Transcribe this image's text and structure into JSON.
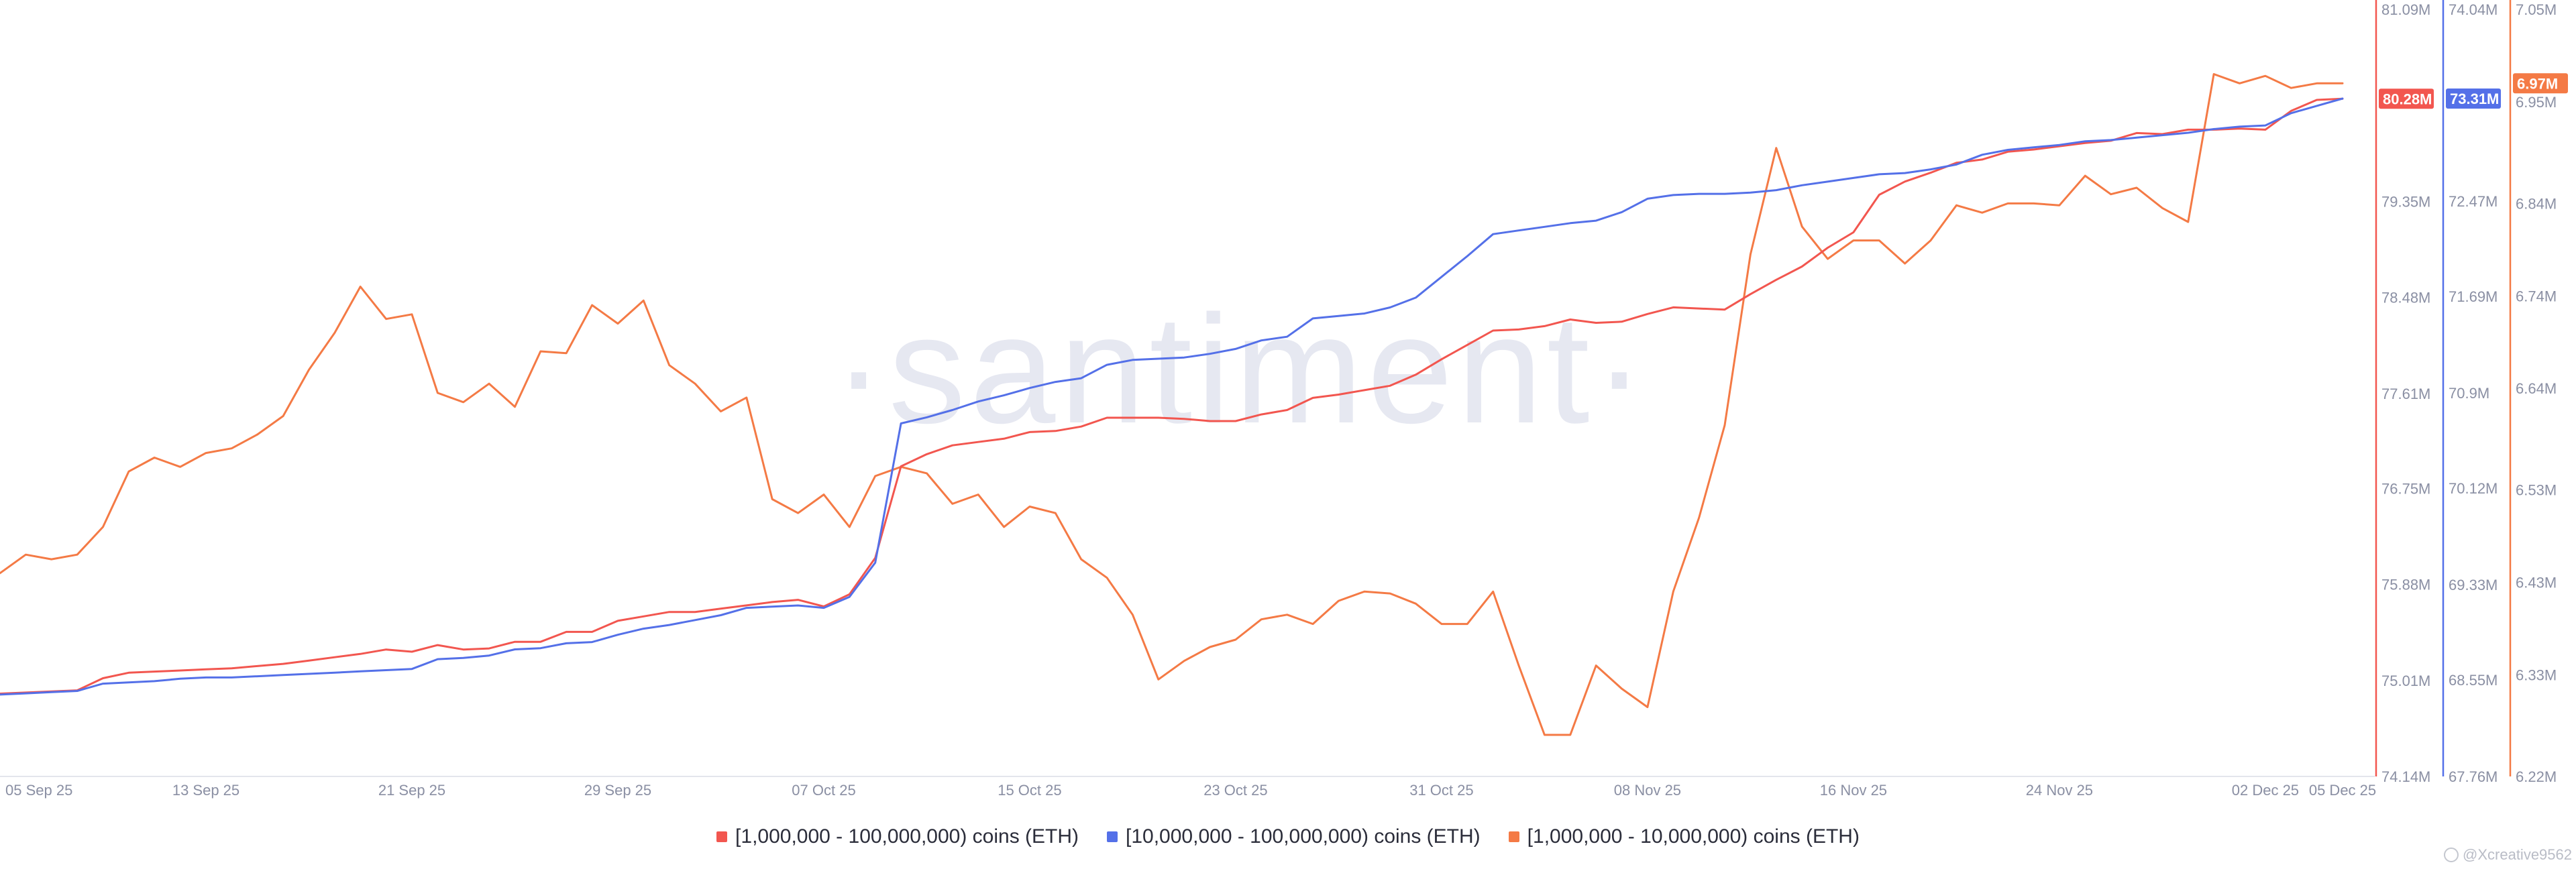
{
  "watermark": "·santiment·",
  "attribution": "@Xcreative9562",
  "chart_data": {
    "type": "line",
    "x_labels": [
      "05 Sep 25",
      "13 Sep 25",
      "21 Sep 25",
      "29 Sep 25",
      "07 Oct 25",
      "15 Oct 25",
      "23 Oct 25",
      "31 Oct 25",
      "08 Nov 25",
      "16 Nov 25",
      "24 Nov 25",
      "02 Dec 25",
      "05 Dec 25"
    ],
    "x_label_days": [
      0,
      8,
      16,
      24,
      32,
      40,
      48,
      56,
      64,
      72,
      80,
      88,
      91
    ],
    "axes": {
      "red": {
        "ticks": [
          "81.09M",
          "79.35M",
          "78.48M",
          "77.61M",
          "76.75M",
          "75.88M",
          "75.01M",
          "74.14M"
        ],
        "min": 74.14,
        "max": 81.09,
        "current_label": "80.28M",
        "color": "#f2564f"
      },
      "blue": {
        "ticks": [
          "74.04M",
          "72.47M",
          "71.69M",
          "70.9M",
          "70.12M",
          "69.33M",
          "68.55M",
          "67.76M"
        ],
        "min": 67.76,
        "max": 74.04,
        "current_label": "73.31M",
        "color": "#5470e8"
      },
      "orange": {
        "ticks": [
          "7.05M",
          "6.95M",
          "6.84M",
          "6.74M",
          "6.64M",
          "6.53M",
          "6.43M",
          "6.33M",
          "6.22M"
        ],
        "min": 6.22,
        "max": 7.05,
        "current_label": "6.97M",
        "color": "#f47a45"
      }
    },
    "series": [
      {
        "name": "[1,000,000 - 100,000,000) coins (ETH)",
        "color": "#f2564f",
        "axis": "red",
        "x": [
          0,
          1,
          2,
          3,
          4,
          5,
          6,
          7,
          8,
          9,
          10,
          11,
          12,
          13,
          14,
          15,
          16,
          17,
          18,
          19,
          20,
          21,
          22,
          23,
          24,
          25,
          26,
          27,
          28,
          29,
          30,
          31,
          32,
          33,
          34,
          35,
          36,
          37,
          38,
          39,
          40,
          41,
          42,
          43,
          44,
          45,
          46,
          47,
          48,
          49,
          50,
          51,
          52,
          53,
          54,
          55,
          56,
          57,
          58,
          59,
          60,
          61,
          62,
          63,
          64,
          65,
          66,
          67,
          68,
          69,
          70,
          71,
          72,
          73,
          74,
          75,
          76,
          77,
          78,
          79,
          80,
          81,
          82,
          83,
          84,
          85,
          86,
          87,
          88,
          89,
          90,
          91
        ],
        "values": [
          74.89,
          74.9,
          74.91,
          74.92,
          75.03,
          75.08,
          75.09,
          75.1,
          75.11,
          75.12,
          75.14,
          75.16,
          75.19,
          75.22,
          75.25,
          75.29,
          75.27,
          75.33,
          75.29,
          75.3,
          75.36,
          75.36,
          75.45,
          75.45,
          75.55,
          75.59,
          75.63,
          75.63,
          75.66,
          75.69,
          75.72,
          75.74,
          75.68,
          75.79,
          76.12,
          76.95,
          77.06,
          77.14,
          77.17,
          77.2,
          77.26,
          77.27,
          77.31,
          77.39,
          77.39,
          77.39,
          77.38,
          77.36,
          77.36,
          77.42,
          77.46,
          77.57,
          77.6,
          77.64,
          77.68,
          77.78,
          77.92,
          78.05,
          78.18,
          78.19,
          78.22,
          78.28,
          78.25,
          78.26,
          78.33,
          78.39,
          78.38,
          78.37,
          78.51,
          78.64,
          78.76,
          78.93,
          79.07,
          79.41,
          79.53,
          79.61,
          79.7,
          79.73,
          79.8,
          79.82,
          79.85,
          79.88,
          79.9,
          79.97,
          79.96,
          80.0,
          80.0,
          80.01,
          80.0,
          80.17,
          80.27,
          80.28
        ]
      },
      {
        "name": "[10,000,000 - 100,000,000) coins (ETH)",
        "color": "#5470e8",
        "axis": "blue",
        "x": [
          0,
          1,
          2,
          3,
          4,
          5,
          6,
          7,
          8,
          9,
          10,
          11,
          12,
          13,
          14,
          15,
          16,
          17,
          18,
          19,
          20,
          21,
          22,
          23,
          24,
          25,
          26,
          27,
          28,
          29,
          30,
          31,
          32,
          33,
          34,
          35,
          36,
          37,
          38,
          39,
          40,
          41,
          42,
          43,
          44,
          45,
          46,
          47,
          48,
          49,
          50,
          51,
          52,
          53,
          54,
          55,
          56,
          57,
          58,
          59,
          60,
          61,
          62,
          63,
          64,
          65,
          66,
          67,
          68,
          69,
          70,
          71,
          72,
          73,
          74,
          75,
          76,
          77,
          78,
          79,
          80,
          81,
          82,
          83,
          84,
          85,
          86,
          87,
          88,
          89,
          90,
          91
        ],
        "values": [
          68.43,
          68.44,
          68.45,
          68.46,
          68.52,
          68.53,
          68.54,
          68.56,
          68.57,
          68.57,
          68.58,
          68.59,
          68.6,
          68.61,
          68.62,
          68.63,
          68.64,
          68.72,
          68.73,
          68.75,
          68.8,
          68.81,
          68.85,
          68.86,
          68.92,
          68.97,
          69.0,
          69.04,
          69.08,
          69.14,
          69.15,
          69.16,
          69.14,
          69.23,
          69.51,
          70.65,
          70.7,
          70.76,
          70.83,
          70.88,
          70.94,
          70.99,
          71.02,
          71.13,
          71.17,
          71.18,
          71.19,
          71.22,
          71.26,
          71.33,
          71.36,
          71.51,
          71.53,
          71.55,
          71.6,
          71.68,
          71.85,
          72.02,
          72.2,
          72.23,
          72.26,
          72.29,
          72.31,
          72.38,
          72.49,
          72.52,
          72.53,
          72.53,
          72.54,
          72.56,
          72.6,
          72.63,
          72.66,
          72.69,
          72.7,
          72.73,
          72.77,
          72.85,
          72.89,
          72.91,
          72.93,
          72.96,
          72.97,
          72.99,
          73.01,
          73.03,
          73.06,
          73.08,
          73.09,
          73.19,
          73.25,
          73.31
        ]
      },
      {
        "name": "[1,000,000 - 10,000,000) coins (ETH)",
        "color": "#f47a45",
        "axis": "orange",
        "x": [
          0,
          1,
          2,
          3,
          4,
          5,
          6,
          7,
          8,
          9,
          10,
          11,
          12,
          13,
          14,
          15,
          16,
          17,
          18,
          19,
          20,
          21,
          22,
          23,
          24,
          25,
          26,
          27,
          28,
          29,
          30,
          31,
          32,
          33,
          34,
          35,
          36,
          37,
          38,
          39,
          40,
          41,
          42,
          43,
          44,
          45,
          46,
          47,
          48,
          49,
          50,
          51,
          52,
          53,
          54,
          55,
          56,
          57,
          58,
          59,
          60,
          61,
          62,
          63,
          64,
          65,
          66,
          67,
          68,
          69,
          70,
          71,
          72,
          73,
          74,
          75,
          76,
          77,
          78,
          79,
          80,
          81,
          82,
          83,
          84,
          85,
          86,
          87,
          88,
          89,
          90,
          91
        ],
        "values": [
          6.44,
          6.46,
          6.455,
          6.46,
          6.49,
          6.55,
          6.565,
          6.555,
          6.57,
          6.575,
          6.59,
          6.61,
          6.66,
          6.7,
          6.75,
          6.715,
          6.72,
          6.635,
          6.625,
          6.645,
          6.62,
          6.68,
          6.678,
          6.73,
          6.71,
          6.735,
          6.665,
          6.645,
          6.615,
          6.63,
          6.52,
          6.505,
          6.525,
          6.49,
          6.545,
          6.555,
          6.548,
          6.515,
          6.525,
          6.49,
          6.512,
          6.505,
          6.455,
          6.435,
          6.395,
          6.325,
          6.345,
          6.36,
          6.368,
          6.39,
          6.395,
          6.385,
          6.41,
          6.42,
          6.418,
          6.407,
          6.385,
          6.385,
          6.42,
          6.34,
          6.265,
          6.265,
          6.34,
          6.315,
          6.295,
          6.42,
          6.5,
          6.6,
          6.785,
          6.9,
          6.815,
          6.78,
          6.8,
          6.8,
          6.775,
          6.8,
          6.838,
          6.83,
          6.84,
          6.84,
          6.838,
          6.87,
          6.85,
          6.857,
          6.835,
          6.82,
          6.98,
          6.97,
          6.978,
          6.965,
          6.97,
          6.97
        ]
      }
    ]
  }
}
